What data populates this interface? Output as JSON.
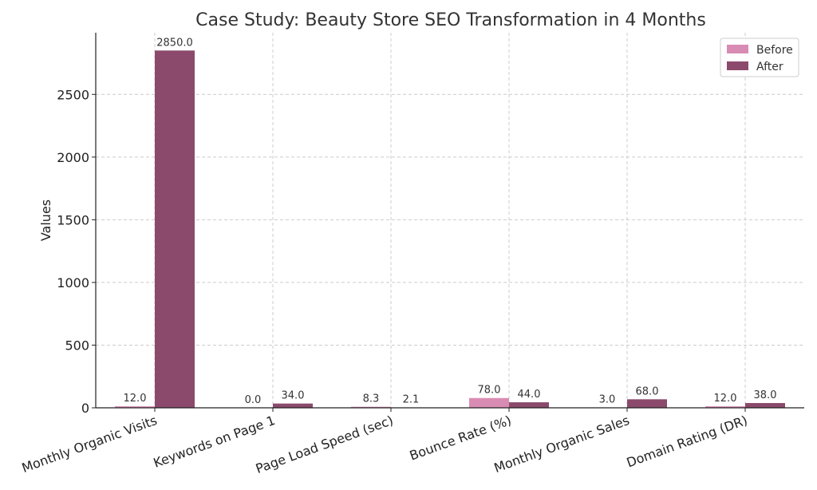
{
  "chart_data": {
    "type": "bar",
    "title": "Case Study: Beauty Store SEO Transformation in 4 Months",
    "xlabel": "",
    "ylabel": "Values",
    "categories": [
      "Monthly Organic Visits",
      "Keywords on Page 1",
      "Page Load Speed (sec)",
      "Bounce Rate (%)",
      "Monthly Organic Sales",
      "Domain Rating (DR)"
    ],
    "series": [
      {
        "name": "Before",
        "values": [
          12.0,
          0.0,
          8.3,
          78.0,
          3.0,
          12.0
        ],
        "labels": [
          "12.0",
          "0.0",
          "8.3",
          "78.0",
          "3.0",
          "12.0"
        ],
        "color": "#d98cb3"
      },
      {
        "name": "After",
        "values": [
          2850.0,
          34.0,
          2.1,
          44.0,
          68.0,
          38.0
        ],
        "labels": [
          "2850.0",
          "34.0",
          "2.1",
          "44.0",
          "68.0",
          "38.0"
        ],
        "color": "#8b4a6b"
      }
    ],
    "ylim": [
      0,
      2992
    ],
    "yticks": [
      0,
      500,
      1000,
      1500,
      2000,
      2500
    ],
    "ytick_labels": [
      "0",
      "500",
      "1000",
      "1500",
      "2000",
      "2500"
    ],
    "grid": true,
    "legend_position": "top-right"
  }
}
